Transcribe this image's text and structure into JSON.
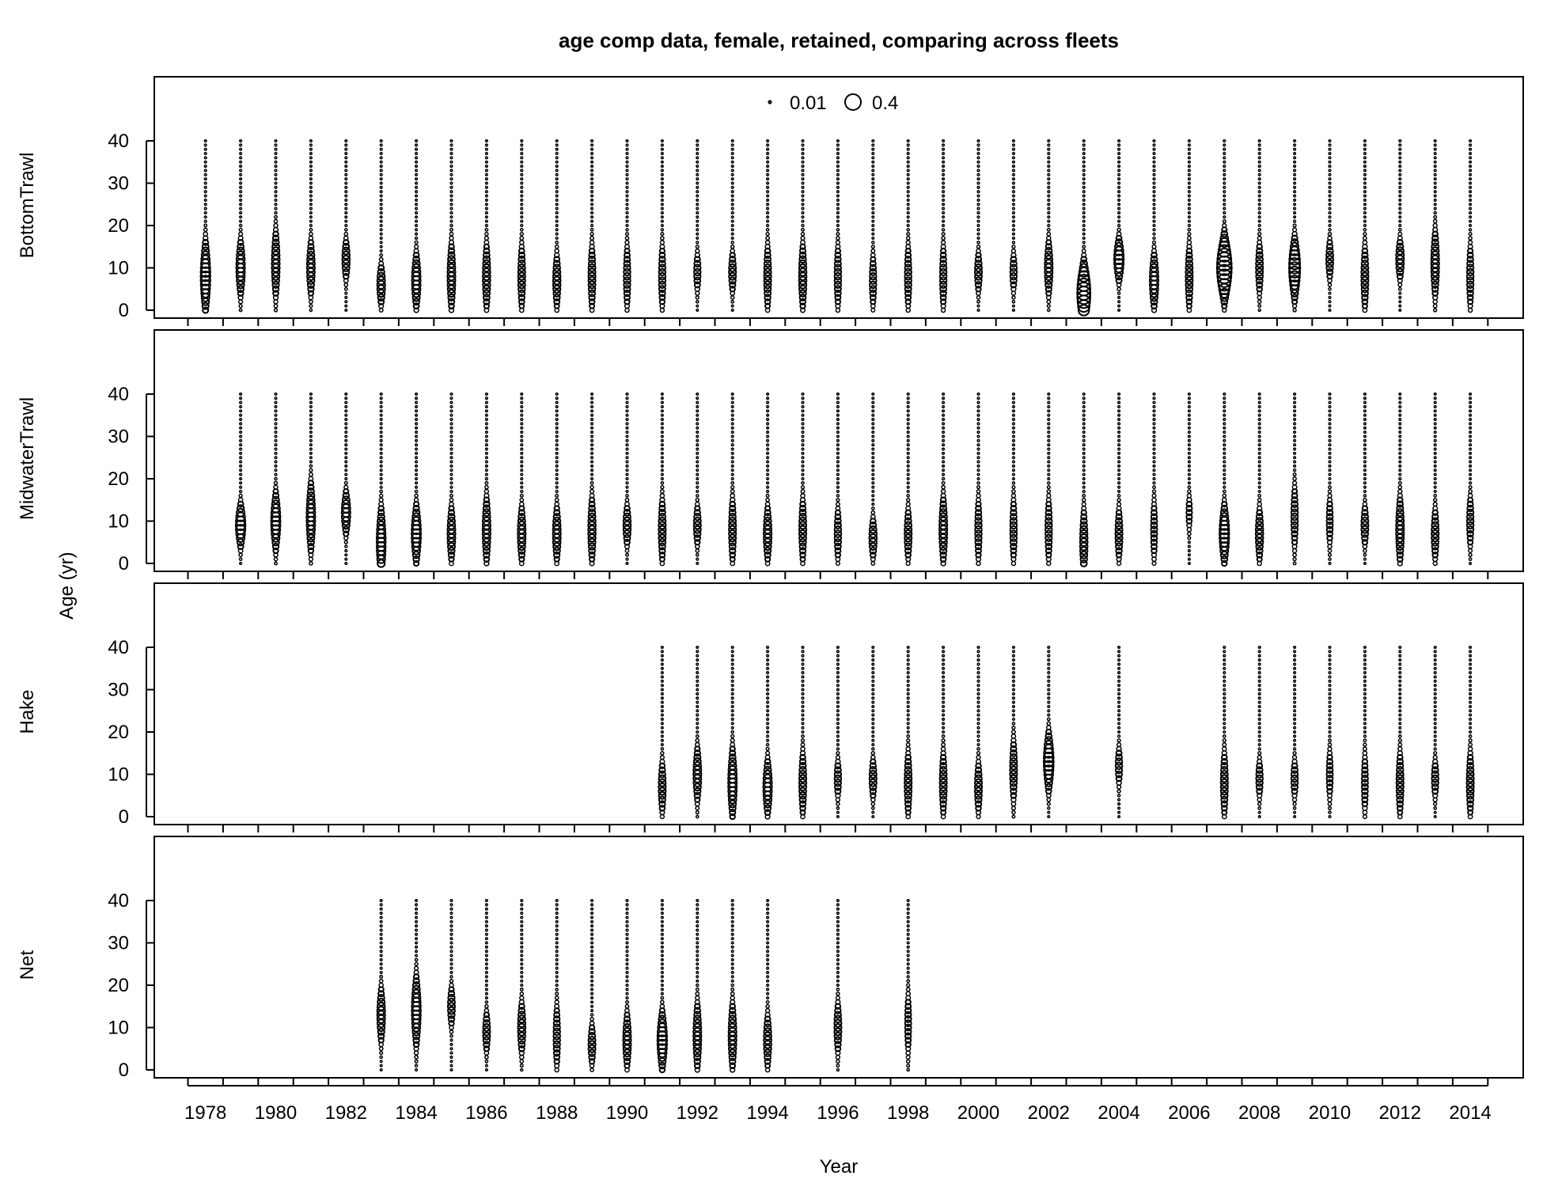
{
  "chart_data": {
    "type": "bubble",
    "title": "age comp data, female, retained, comparing across fleets",
    "xlabel": "Year",
    "ylabel": "Age (yr)",
    "year_range": [
      1978,
      2014
    ],
    "x_tick_labels": [
      "1978",
      "1980",
      "1982",
      "1984",
      "1986",
      "1988",
      "1990",
      "1992",
      "1994",
      "1996",
      "1998",
      "2000",
      "2002",
      "2004",
      "2006",
      "2008",
      "2010",
      "2012",
      "2014"
    ],
    "y_ticks": [
      0,
      10,
      20,
      30,
      40
    ],
    "max_age": 40,
    "legend": {
      "values": [
        0.01,
        0.4
      ],
      "labels": [
        "0.01",
        "0.4"
      ],
      "placement": "top-center"
    },
    "panels": [
      {
        "name": "BottomTrawl",
        "years": [
          1978,
          1979,
          1980,
          1981,
          1982,
          1983,
          1984,
          1985,
          1986,
          1987,
          1988,
          1989,
          1990,
          1991,
          1992,
          1993,
          1994,
          1995,
          1996,
          1997,
          1998,
          1999,
          2000,
          2001,
          2002,
          2003,
          2004,
          2005,
          2006,
          2007,
          2008,
          2009,
          2010,
          2011,
          2012,
          2013,
          2014
        ],
        "modes": [
          8,
          10,
          11,
          10,
          12,
          6,
          7,
          8,
          8,
          8,
          7,
          8,
          8,
          8,
          9,
          9,
          8,
          8,
          8,
          7,
          8,
          8,
          9,
          9,
          10,
          4,
          12,
          7,
          8,
          10,
          10,
          10,
          12,
          8,
          12,
          11,
          8
        ],
        "peaks": [
          0.15,
          0.12,
          0.1,
          0.1,
          0.09,
          0.1,
          0.12,
          0.1,
          0.09,
          0.08,
          0.09,
          0.08,
          0.07,
          0.07,
          0.07,
          0.08,
          0.08,
          0.09,
          0.07,
          0.07,
          0.07,
          0.07,
          0.08,
          0.07,
          0.1,
          0.28,
          0.15,
          0.12,
          0.08,
          0.35,
          0.08,
          0.2,
          0.08,
          0.08,
          0.1,
          0.1,
          0.07
        ]
      },
      {
        "name": "MidwaterTrawl",
        "years": [
          1979,
          1980,
          1981,
          1982,
          1983,
          1984,
          1985,
          1986,
          1987,
          1988,
          1989,
          1990,
          1991,
          1992,
          1993,
          1994,
          1995,
          1996,
          1997,
          1998,
          1999,
          2000,
          2001,
          2002,
          2003,
          2004,
          2005,
          2006,
          2007,
          2008,
          2009,
          2010,
          2011,
          2012,
          2013,
          2014
        ],
        "modes": [
          9,
          10,
          11,
          12,
          5,
          7,
          7,
          8,
          7,
          7,
          8,
          9,
          8,
          9,
          8,
          7,
          8,
          7,
          6,
          7,
          8,
          8,
          8,
          8,
          5,
          7,
          8,
          12,
          7,
          7,
          11,
          10,
          9,
          8,
          7,
          10
        ],
        "peaks": [
          0.15,
          0.14,
          0.12,
          0.12,
          0.13,
          0.14,
          0.1,
          0.1,
          0.1,
          0.1,
          0.09,
          0.09,
          0.08,
          0.08,
          0.08,
          0.1,
          0.08,
          0.07,
          0.09,
          0.08,
          0.1,
          0.07,
          0.07,
          0.07,
          0.09,
          0.08,
          0.06,
          0.05,
          0.15,
          0.09,
          0.07,
          0.06,
          0.08,
          0.1,
          0.08,
          0.07
        ]
      },
      {
        "name": "Hake",
        "years": [
          1991,
          1992,
          1993,
          1994,
          1995,
          1996,
          1997,
          1998,
          1999,
          2000,
          2001,
          2002,
          2004,
          2007,
          2008,
          2009,
          2010,
          2011,
          2012,
          2013,
          2014
        ],
        "modes": [
          7,
          10,
          8,
          7,
          8,
          9,
          9,
          8,
          8,
          7,
          11,
          13,
          12,
          8,
          9,
          9,
          10,
          8,
          8,
          9,
          8
        ],
        "peaks": [
          0.08,
          0.1,
          0.12,
          0.12,
          0.08,
          0.07,
          0.08,
          0.08,
          0.08,
          0.08,
          0.08,
          0.16,
          0.07,
          0.08,
          0.07,
          0.07,
          0.06,
          0.06,
          0.08,
          0.07,
          0.08
        ]
      },
      {
        "name": "Net",
        "years": [
          1983,
          1984,
          1985,
          1986,
          1987,
          1988,
          1989,
          1990,
          1991,
          1992,
          1993,
          1994,
          1996,
          1998
        ],
        "modes": [
          13,
          14,
          15,
          9,
          10,
          8,
          6,
          7,
          7,
          8,
          8,
          7,
          10,
          11
        ],
        "peaks": [
          0.1,
          0.13,
          0.08,
          0.08,
          0.09,
          0.07,
          0.08,
          0.1,
          0.15,
          0.1,
          0.1,
          0.09,
          0.08,
          0.06
        ]
      }
    ]
  }
}
